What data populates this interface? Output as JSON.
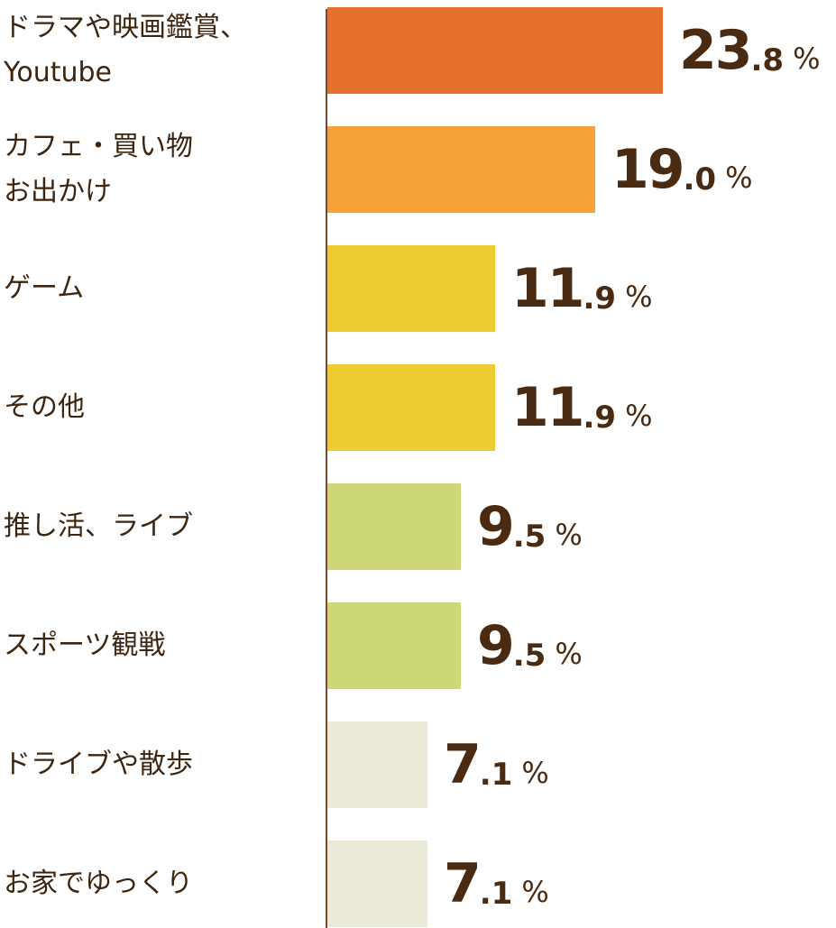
{
  "chart_data": {
    "type": "bar",
    "orientation": "horizontal",
    "unit": "%",
    "categories": [
      "ドラマや映画鑑賞、\nYoutube",
      "カフェ・買い物\nお出かけ",
      "ゲーム",
      "その他",
      "推し活、ライブ",
      "スポーツ観戦",
      "ドライブや散歩",
      "お家でゆっくり"
    ],
    "values": [
      23.8,
      19.0,
      11.9,
      11.9,
      9.5,
      9.5,
      7.1,
      7.1
    ],
    "value_int": [
      "23",
      "19",
      "11",
      "11",
      "9",
      "9",
      "7",
      "7"
    ],
    "value_dec": [
      ".8",
      ".0",
      ".9",
      ".9",
      ".5",
      ".5",
      ".1",
      ".1"
    ],
    "colors": [
      "#e5702d",
      "#f4a135",
      "#edcc31",
      "#edcc31",
      "#cdd775",
      "#cdd775",
      "#ebe9d7",
      "#ebe9d7"
    ],
    "xlim": [
      0,
      23.8
    ],
    "grid": false,
    "legend": "none"
  }
}
